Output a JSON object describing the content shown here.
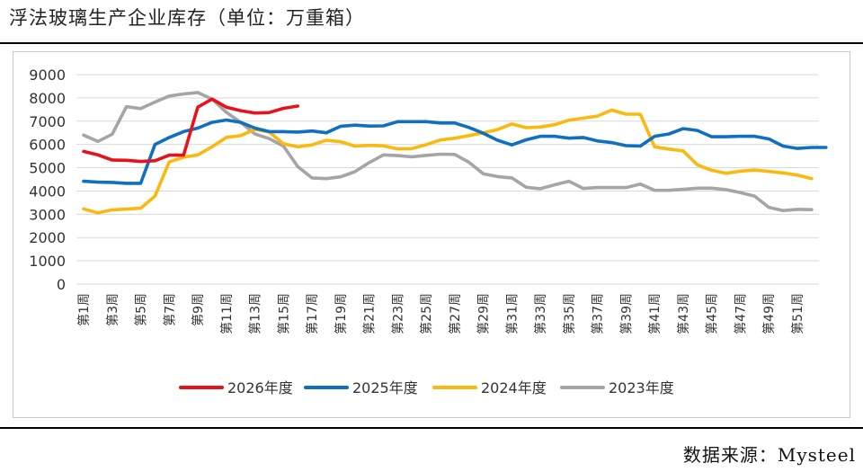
{
  "title": "浮法玻璃生产企业库存（单位：万重箱）",
  "source": "数据来源：Mysteel",
  "chart_data": {
    "type": "line",
    "title": "浮法玻璃生产企业库存（单位：万重箱）",
    "ylim": [
      0,
      9000
    ],
    "yticks": [
      0,
      1000,
      2000,
      3000,
      4000,
      5000,
      6000,
      7000,
      8000,
      9000
    ],
    "ytick_labels": [
      "0",
      "1000",
      "2000",
      "3000",
      "4000",
      "5000",
      "6000",
      "7000",
      "8000",
      "9000"
    ],
    "x_labels": [
      "第1周",
      "第3周",
      "第5周",
      "第7周",
      "第9周",
      "第11周",
      "第13周",
      "第15周",
      "第17周",
      "第19周",
      "第21周",
      "第23周",
      "第25周",
      "第27周",
      "第29周",
      "第31周",
      "第33周",
      "第35周",
      "第37周",
      "第39周",
      "第41周",
      "第43周",
      "第45周",
      "第47周",
      "第49周",
      "第51周"
    ],
    "grid": true,
    "legend_position": "bottom",
    "series": [
      {
        "name": "2026年度",
        "color": "#e8131a",
        "values": [
          5700,
          5550,
          5330,
          5320,
          5270,
          5300,
          5540,
          5540,
          7600,
          7950,
          7600,
          7450,
          7350,
          7370,
          7550,
          7650
        ]
      },
      {
        "name": "2025年度",
        "color": "#0f6fc1",
        "values": [
          4420,
          4380,
          4370,
          4330,
          4330,
          6000,
          6300,
          6550,
          6700,
          6950,
          7050,
          6950,
          6700,
          6550,
          6550,
          6530,
          6580,
          6500,
          6780,
          6830,
          6790,
          6800,
          6980,
          6980,
          6980,
          6920,
          6920,
          6730,
          6480,
          6180,
          5980,
          6200,
          6350,
          6350,
          6270,
          6300,
          6150,
          6080,
          5950,
          5930,
          6350,
          6450,
          6680,
          6600,
          6330,
          6330,
          6350,
          6350,
          6240,
          5930,
          5830,
          5870,
          5870
        ]
      },
      {
        "name": "2024年度",
        "color": "#fbb80f",
        "values": [
          3230,
          3060,
          3190,
          3220,
          3260,
          3780,
          5250,
          5450,
          5550,
          5900,
          6300,
          6380,
          6650,
          6540,
          6030,
          5900,
          5980,
          6180,
          6120,
          5930,
          5960,
          5940,
          5810,
          5820,
          5990,
          6190,
          6270,
          6380,
          6500,
          6640,
          6880,
          6720,
          6750,
          6850,
          7040,
          7130,
          7220,
          7480,
          7300,
          7300,
          5900,
          5800,
          5720,
          5120,
          4890,
          4760,
          4850,
          4900,
          4840,
          4780,
          4680,
          4530
        ]
      },
      {
        "name": "2023年度",
        "color": "#a5a5a5",
        "values": [
          6400,
          6130,
          6440,
          7620,
          7540,
          7820,
          8080,
          8170,
          8230,
          7950,
          7380,
          6950,
          6450,
          6250,
          5930,
          5050,
          4560,
          4530,
          4610,
          4830,
          5220,
          5550,
          5520,
          5470,
          5530,
          5580,
          5570,
          5230,
          4740,
          4620,
          4560,
          4160,
          4100,
          4270,
          4420,
          4110,
          4150,
          4150,
          4150,
          4300,
          4030,
          4030,
          4070,
          4120,
          4120,
          4060,
          3930,
          3780,
          3300,
          3160,
          3210,
          3200
        ]
      }
    ]
  }
}
